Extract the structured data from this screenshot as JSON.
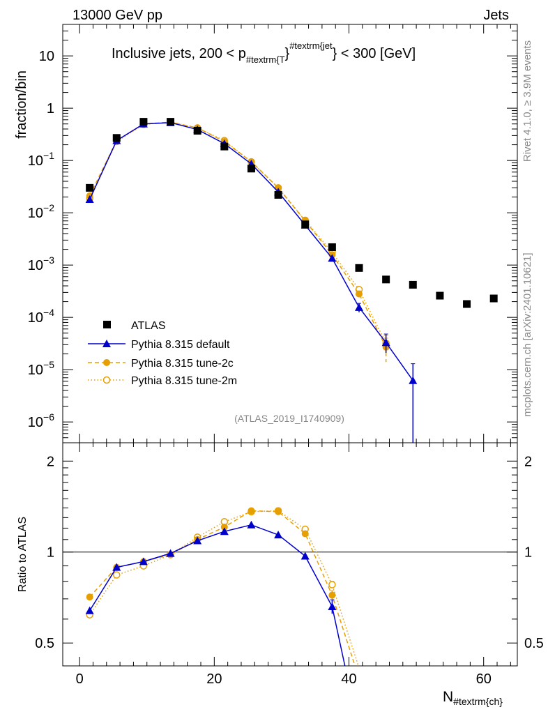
{
  "header": {
    "left": "13000 GeV pp",
    "right": "Jets"
  },
  "side_labels": {
    "rivet": "Rivet 4.1.0, ≥ 3.9M events",
    "mcplots": "mcplots.cern.ch [arXiv:2401.10621]"
  },
  "colors": {
    "atlas": "#000000",
    "default": "#0000cc",
    "tune2c": "#e69f00",
    "tune2m": "#e69f00"
  },
  "chart_data": [
    {
      "type": "scatter",
      "panel": "main",
      "title": {
        "main": "Inclusive jets, 200 < p",
        "sub": "#textrm{T",
        "brace": "}",
        "sup": "#textrm{jet",
        "tail": "} < 300 [GeV]"
      },
      "watermark": "(ATLAS_2019_I1740909)",
      "ylabel": "fraction/bin",
      "yscale": "log",
      "ylim": [
        4e-07,
        40
      ],
      "xlim": [
        -2.5,
        65
      ],
      "ytick_labels": [
        {
          "v": 10,
          "base": "10",
          "exp": ""
        },
        {
          "v": 1,
          "base": "1",
          "exp": ""
        },
        {
          "v": 0.1,
          "base": "10",
          "exp": "−1"
        },
        {
          "v": 0.01,
          "base": "10",
          "exp": "−2"
        },
        {
          "v": 0.001,
          "base": "10",
          "exp": "−3"
        },
        {
          "v": 0.0001,
          "base": "10",
          "exp": "−4"
        },
        {
          "v": 1e-05,
          "base": "10",
          "exp": "−5"
        },
        {
          "v": 1e-06,
          "base": "10",
          "exp": "−6"
        }
      ],
      "legend": {
        "position": "lower-left",
        "entries": [
          {
            "key": "atlas",
            "label": "ATLAS"
          },
          {
            "key": "default",
            "label": "Pythia 8.315 default"
          },
          {
            "key": "tune2c",
            "label": "Pythia 8.315 tune-2c"
          },
          {
            "key": "tune2m",
            "label": "Pythia 8.315 tune-2m"
          }
        ]
      },
      "series": [
        {
          "key": "atlas",
          "name": "ATLAS",
          "marker": "square",
          "x": [
            1.5,
            5.5,
            9.5,
            13.5,
            17.5,
            21.5,
            25.5,
            29.5,
            33.5,
            37.5,
            41.5,
            45.5,
            49.5,
            53.5,
            57.5,
            61.5
          ],
          "values": [
            0.03,
            0.27,
            0.55,
            0.55,
            0.37,
            0.185,
            0.07,
            0.022,
            0.006,
            0.0022,
            0.00088,
            0.00053,
            0.00042,
            0.00026,
            0.00018,
            0.00023
          ]
        },
        {
          "key": "default",
          "name": "Pythia 8.315 default",
          "marker": "triangle",
          "line": "solid",
          "x": [
            1.5,
            5.5,
            9.5,
            13.5,
            17.5,
            21.5,
            25.5,
            29.5,
            33.5,
            37.5,
            41.5,
            45.5,
            49.5
          ],
          "values": [
            0.018,
            0.24,
            0.5,
            0.53,
            0.39,
            0.21,
            0.086,
            0.025,
            0.0058,
            0.00135,
            0.000155,
            3.3e-05,
            6.2e-06
          ],
          "err_lo": [
            0,
            0,
            0,
            0,
            0,
            0,
            0,
            0,
            0,
            0,
            3e-05,
            1.2e-05,
            5.9e-06
          ],
          "err_hi": [
            0,
            0,
            0,
            0,
            0,
            0,
            0,
            0,
            0,
            0,
            3e-05,
            1.5e-05,
            6.8e-06
          ]
        },
        {
          "key": "tune2c",
          "name": "Pythia 8.315 tune-2c",
          "marker": "filled-circle",
          "line": "dashed",
          "x": [
            1.5,
            5.5,
            9.5,
            13.5,
            17.5,
            21.5,
            25.5,
            29.5,
            33.5,
            37.5,
            41.5,
            45.5
          ],
          "values": [
            0.021,
            0.24,
            0.5,
            0.54,
            0.42,
            0.23,
            0.095,
            0.03,
            0.007,
            0.00158,
            0.00028,
            2.7e-05
          ],
          "err_lo": [
            0,
            0,
            0,
            0,
            0,
            0,
            0,
            0,
            0,
            0,
            4e-05,
            1.3e-05
          ],
          "err_hi": [
            0,
            0,
            0,
            0,
            0,
            0,
            0,
            0,
            0,
            0,
            4e-05,
            1.3e-05
          ]
        },
        {
          "key": "tune2m",
          "name": "Pythia 8.315 tune-2m",
          "marker": "open-circle",
          "line": "dotted",
          "x": [
            1.5,
            5.5,
            9.5,
            13.5,
            17.5,
            21.5,
            25.5,
            29.5,
            33.5,
            37.5,
            41.5,
            45.5
          ],
          "values": [
            0.019,
            0.23,
            0.49,
            0.54,
            0.42,
            0.24,
            0.094,
            0.03,
            0.0072,
            0.00175,
            0.00034,
            3.2e-05
          ],
          "err_lo": [
            0,
            0,
            0,
            0,
            0,
            0,
            0,
            0,
            0,
            0,
            4e-05,
            1.3e-05
          ],
          "err_hi": [
            0,
            0,
            0,
            0,
            0,
            0,
            0,
            0,
            0,
            0,
            4e-05,
            1.3e-05
          ]
        }
      ]
    },
    {
      "type": "line",
      "panel": "ratio",
      "ylabel": "Ratio to ATLAS",
      "xlabel": "N",
      "xlabel_sub": "#textrm{ch}",
      "yscale": "log",
      "ylim": [
        0.42,
        2.3
      ],
      "xlim": [
        -2.5,
        65
      ],
      "reference": 1,
      "ytick_labels": [
        {
          "v": 2,
          "label": "2"
        },
        {
          "v": 1,
          "label": "1"
        },
        {
          "v": 0.5,
          "label": "0.5"
        }
      ],
      "xtick_labels": [
        {
          "v": 0,
          "label": "0"
        },
        {
          "v": 20,
          "label": "20"
        },
        {
          "v": 40,
          "label": "40"
        },
        {
          "v": 60,
          "label": "60"
        }
      ],
      "series": [
        {
          "key": "default",
          "marker": "triangle",
          "line": "solid",
          "x": [
            1.5,
            5.5,
            9.5,
            13.5,
            17.5,
            21.5,
            25.5,
            29.5,
            33.5,
            37.5,
            39.4
          ],
          "values": [
            0.64,
            0.89,
            0.93,
            0.99,
            1.09,
            1.17,
            1.23,
            1.14,
            0.97,
            0.66,
            0.42
          ],
          "err_lo": [
            0,
            0,
            0,
            0,
            0,
            0,
            0,
            0,
            0,
            0.035,
            0
          ],
          "err_hi": [
            0,
            0,
            0,
            0,
            0,
            0,
            0,
            0,
            0,
            0.035,
            0
          ]
        },
        {
          "key": "tune2c",
          "marker": "filled-circle",
          "line": "dashed",
          "x": [
            1.5,
            5.5,
            9.5,
            13.5,
            17.5,
            21.5,
            25.5,
            29.5,
            33.5,
            37.5,
            40.9
          ],
          "values": [
            0.71,
            0.89,
            0.93,
            0.98,
            1.1,
            1.21,
            1.37,
            1.36,
            1.15,
            0.72,
            0.42
          ],
          "err_lo": [
            0,
            0,
            0,
            0,
            0,
            0,
            0,
            0,
            0,
            0.025,
            0
          ],
          "err_hi": [
            0,
            0,
            0,
            0,
            0,
            0,
            0,
            0,
            0,
            0.025,
            0
          ]
        },
        {
          "key": "tune2m",
          "marker": "open-circle",
          "line": "dotted",
          "x": [
            1.5,
            5.5,
            9.5,
            13.5,
            17.5,
            21.5,
            25.5,
            29.5,
            33.5,
            37.5,
            41.4
          ],
          "values": [
            0.62,
            0.84,
            0.9,
            0.98,
            1.12,
            1.26,
            1.36,
            1.37,
            1.19,
            0.78,
            0.42
          ],
          "err_lo": [
            0,
            0,
            0,
            0,
            0,
            0,
            0,
            0,
            0,
            0.02,
            0
          ],
          "err_hi": [
            0,
            0,
            0,
            0,
            0,
            0,
            0,
            0,
            0,
            0.02,
            0
          ]
        }
      ]
    }
  ]
}
